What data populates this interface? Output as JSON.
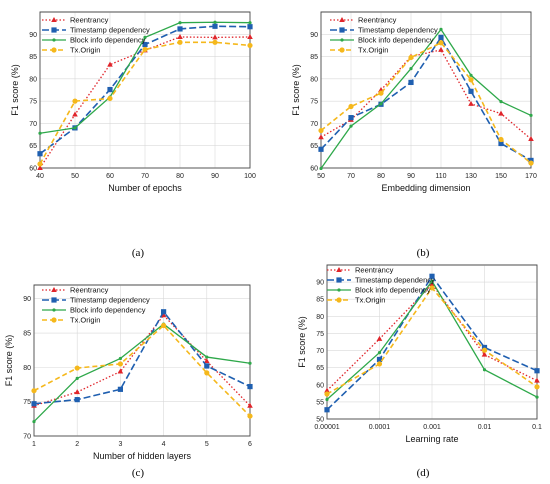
{
  "colors": {
    "reentrancy": "#e0242a",
    "timestamp": "#1f5fb0",
    "block": "#2ea84a",
    "txorigin": "#f5b81c"
  },
  "chart_data": [
    {
      "type": "line",
      "caption": "(a)",
      "xlabel": "Number of epochs",
      "ylabel": "F1 score (%)",
      "categories": [
        "40",
        "50",
        "60",
        "70",
        "80",
        "90",
        "100"
      ],
      "ylim": [
        60,
        95
      ],
      "yticks": [
        "60",
        "65",
        "70",
        "75",
        "80",
        "85",
        "90"
      ],
      "grid": true,
      "legend": "top-left",
      "series": [
        {
          "name": "Reentrancy",
          "values": [
            60,
            72,
            83.2,
            86.4,
            89.4,
            89.3,
            89.4
          ]
        },
        {
          "name": "Timestamp dependency",
          "values": [
            63.2,
            69,
            77.6,
            87.7,
            91.2,
            91.8,
            91.7
          ]
        },
        {
          "name": "Block info dependency",
          "values": [
            67.8,
            69,
            75.9,
            89.3,
            92.6,
            92.7,
            92.6
          ]
        },
        {
          "name": "Tx.Origin",
          "values": [
            60.9,
            75,
            75.6,
            86.6,
            88.2,
            88.2,
            87.5
          ]
        }
      ]
    },
    {
      "type": "line",
      "caption": "(b)",
      "xlabel": "Embedding dimension",
      "ylabel": "F1 score (%)",
      "categories": [
        "50",
        "70",
        "80",
        "90",
        "110",
        "130",
        "150",
        "170"
      ],
      "ylim": [
        60,
        95
      ],
      "yticks": [
        "60",
        "65",
        "70",
        "75",
        "80",
        "85",
        "90"
      ],
      "grid": true,
      "legend": "top-left",
      "series": [
        {
          "name": "Reentrancy",
          "values": [
            66.9,
            70.8,
            77.5,
            85,
            86.5,
            74.4,
            72.2,
            66.5
          ]
        },
        {
          "name": "Timestamp dependency",
          "values": [
            64.2,
            71.3,
            74.3,
            79.2,
            89.3,
            77.2,
            65.5,
            61.7
          ]
        },
        {
          "name": "Block info dependency",
          "values": [
            59.9,
            69.4,
            74.4,
            82.3,
            91.1,
            80.8,
            74.9,
            71.8
          ]
        },
        {
          "name": "Tx.Origin",
          "values": [
            68.4,
            73.8,
            76.8,
            84.8,
            88.1,
            79.8,
            66.4,
            61.1
          ]
        }
      ]
    },
    {
      "type": "line",
      "caption": "(c)",
      "xlabel": "Number of hidden layers",
      "ylabel": "F1 score (%)",
      "categories": [
        "1",
        "2",
        "3",
        "4",
        "5",
        "6"
      ],
      "ylim": [
        70,
        92
      ],
      "yticks": [
        "70",
        "75",
        "80",
        "85",
        "90"
      ],
      "grid": true,
      "legend": "top-left",
      "series": [
        {
          "name": "Reentrancy",
          "values": [
            74.4,
            76.4,
            79.4,
            87.6,
            80.9,
            74.4
          ]
        },
        {
          "name": "Timestamp dependency",
          "values": [
            74.7,
            75.3,
            76.8,
            88.1,
            80.2,
            77.2
          ]
        },
        {
          "name": "Block info dependency",
          "values": [
            72.1,
            78.4,
            81.3,
            86.3,
            81.5,
            80.6
          ]
        },
        {
          "name": "Tx.Origin",
          "values": [
            76.6,
            79.9,
            80.5,
            86.1,
            79.2,
            72.9
          ]
        }
      ]
    },
    {
      "type": "line",
      "caption": "(d)",
      "xlabel": "Learning rate",
      "ylabel": "F1 score (%)",
      "categories": [
        "0.00001",
        "0.0001",
        "0.001",
        "0.01",
        "0.1"
      ],
      "ylim": [
        50,
        95
      ],
      "yticks": [
        "50",
        "55",
        "60",
        "65",
        "70",
        "75",
        "80",
        "85",
        "90"
      ],
      "grid": true,
      "legend": "top-left",
      "series": [
        {
          "name": "Reentrancy",
          "values": [
            58.3,
            73.4,
            89.4,
            68.8,
            61.2
          ]
        },
        {
          "name": "Timestamp dependency",
          "values": [
            52.7,
            67.4,
            91.7,
            70.9,
            64.1
          ]
        },
        {
          "name": "Block info dependency",
          "values": [
            55.7,
            69.4,
            90.3,
            64.4,
            56.4
          ]
        },
        {
          "name": "Tx.Origin",
          "values": [
            57.3,
            66.1,
            88.3,
            70.1,
            59.4
          ]
        }
      ]
    }
  ]
}
